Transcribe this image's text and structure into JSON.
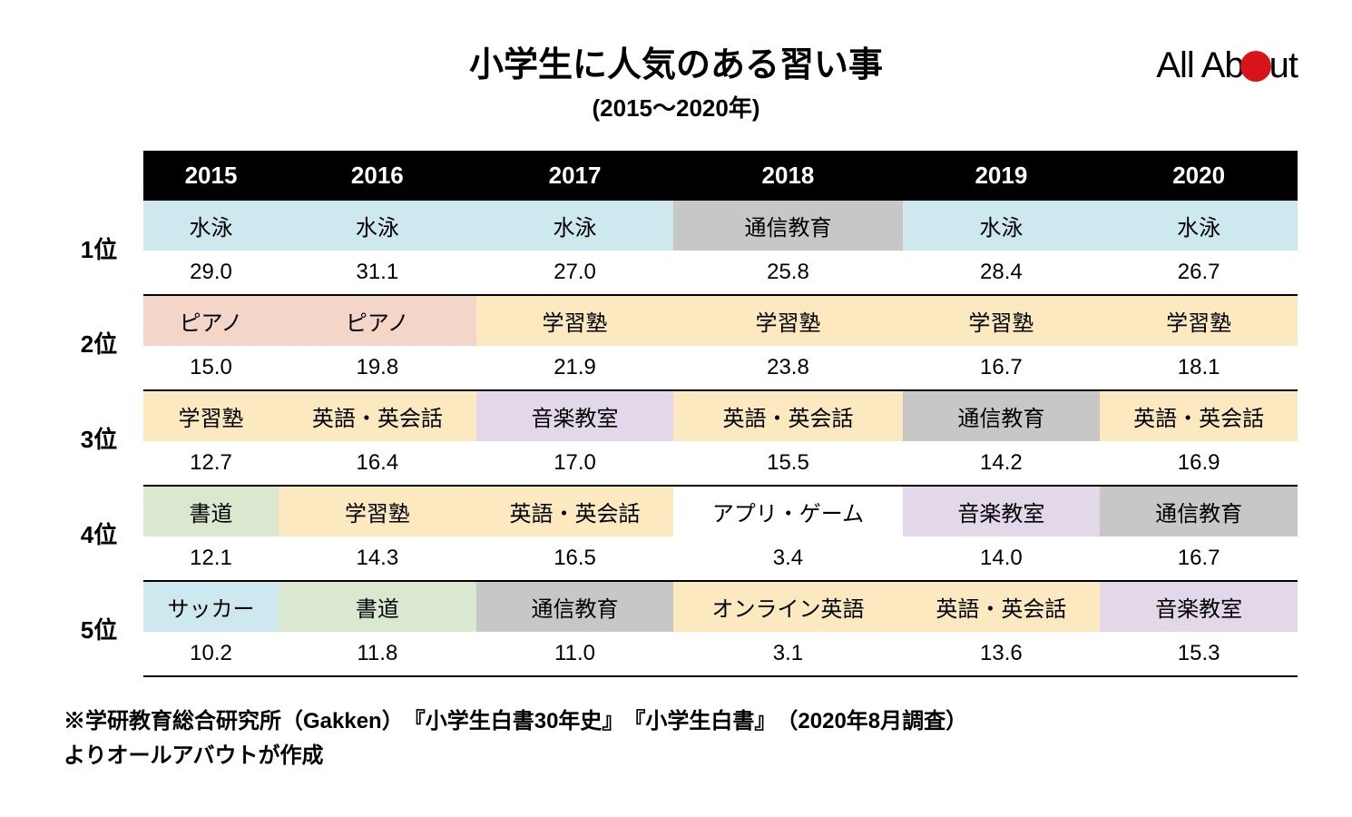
{
  "title": "小学生に人気のある習い事",
  "subtitle": "(2015～2020年)",
  "logo": {
    "pre": "All Ab",
    "post": "ut"
  },
  "years": [
    "2015",
    "2016",
    "2017",
    "2018",
    "2019",
    "2020"
  ],
  "ranks": [
    "1位",
    "2位",
    "3位",
    "4位",
    "5位"
  ],
  "category_colors": {
    "水泳": "#cde8ee",
    "通信教育": "#c7c7c7",
    "ピアノ": "#f4d6c8",
    "学習塾": "#fce9c0",
    "英語・英会話": "#fce9c0",
    "オンライン英語": "#fce9c0",
    "音楽教室": "#e3d7ea",
    "書道": "#d9e8cf",
    "アプリ・ゲーム": "#ffffff",
    "サッカー": "#cde8ee"
  },
  "data": [
    {
      "names": [
        "水泳",
        "水泳",
        "水泳",
        "通信教育",
        "水泳",
        "水泳"
      ],
      "values": [
        "29.0",
        "31.1",
        "27.0",
        "25.8",
        "28.4",
        "26.7"
      ]
    },
    {
      "names": [
        "ピアノ",
        "ピアノ",
        "学習塾",
        "学習塾",
        "学習塾",
        "学習塾"
      ],
      "values": [
        "15.0",
        "19.8",
        "21.9",
        "23.8",
        "16.7",
        "18.1"
      ]
    },
    {
      "names": [
        "学習塾",
        "英語・英会話",
        "音楽教室",
        "英語・英会話",
        "通信教育",
        "英語・英会話"
      ],
      "values": [
        "12.7",
        "16.4",
        "17.0",
        "15.5",
        "14.2",
        "16.9"
      ]
    },
    {
      "names": [
        "書道",
        "学習塾",
        "英語・英会話",
        "アプリ・ゲーム",
        "音楽教室",
        "通信教育"
      ],
      "values": [
        "12.1",
        "14.3",
        "16.5",
        "3.4",
        "14.0",
        "16.7"
      ]
    },
    {
      "names": [
        "サッカー",
        "書道",
        "通信教育",
        "オンライン英語",
        "英語・英会話",
        "音楽教室"
      ],
      "values": [
        "10.2",
        "11.8",
        "11.0",
        "3.1",
        "13.6",
        "15.3"
      ]
    }
  ],
  "footnote_line1": "※学研教育総合研究所（Gakken）　『小学生白書30年史』　『小学生白書』　（2020年8月調査）",
  "footnote_line2": "よりオールアバウトが作成",
  "header_bg": "#000000",
  "header_fg": "#ffffff",
  "border_color": "#000000",
  "title_fontsize": 38,
  "body_fontsize": 24
}
